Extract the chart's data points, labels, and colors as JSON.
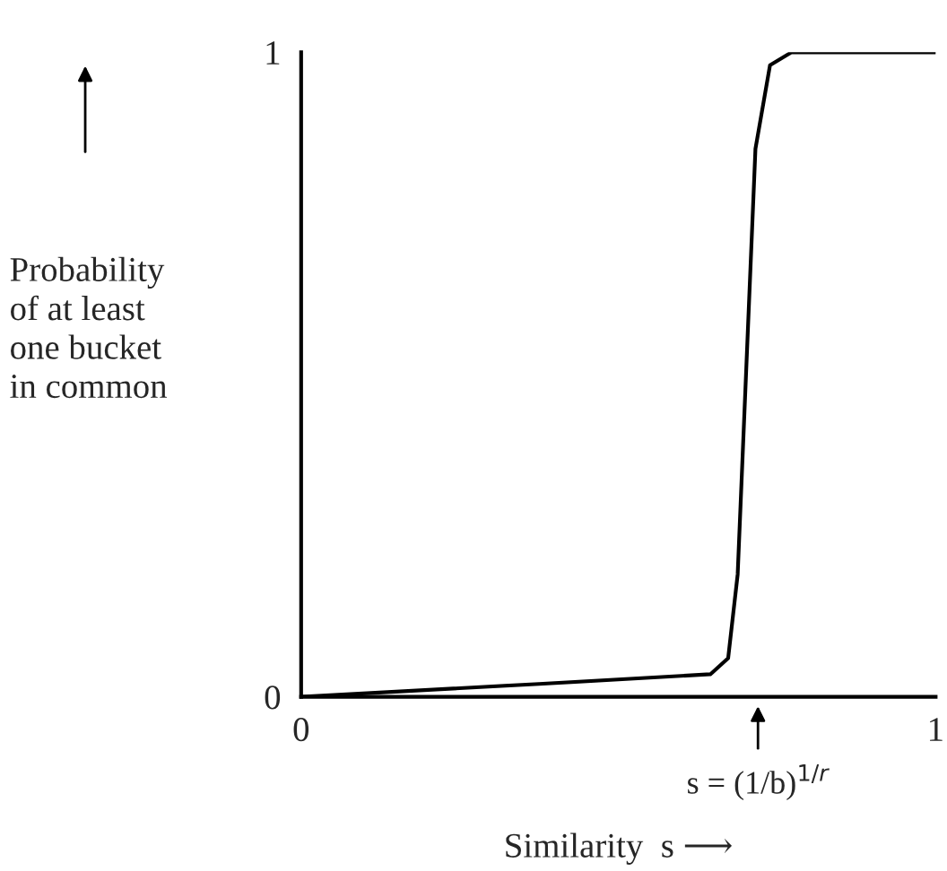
{
  "chart_data": {
    "type": "line",
    "x": [
      0,
      0.375,
      0.645,
      0.673,
      0.688,
      0.716,
      0.739,
      0.773,
      1
    ],
    "series": [
      {
        "color": "#000000",
        "values": [
          0,
          0.02,
          0.035,
          0.06,
          0.19,
          0.85,
          0.98,
          1,
          1
        ]
      }
    ],
    "xlim": [
      0,
      1
    ],
    "ylim": [
      0,
      1
    ],
    "xticks": [
      0,
      1
    ],
    "yticks": [
      0,
      1
    ],
    "xlabel": "Similarity  s ⟶",
    "ylabel": "Probability\nof at least\none bucket\nin common",
    "annotations": [
      "s = (1/b)$^{1/r}$"
    ],
    "grid": false,
    "legend": false,
    "marker": "none",
    "line_style": "solid"
  }
}
